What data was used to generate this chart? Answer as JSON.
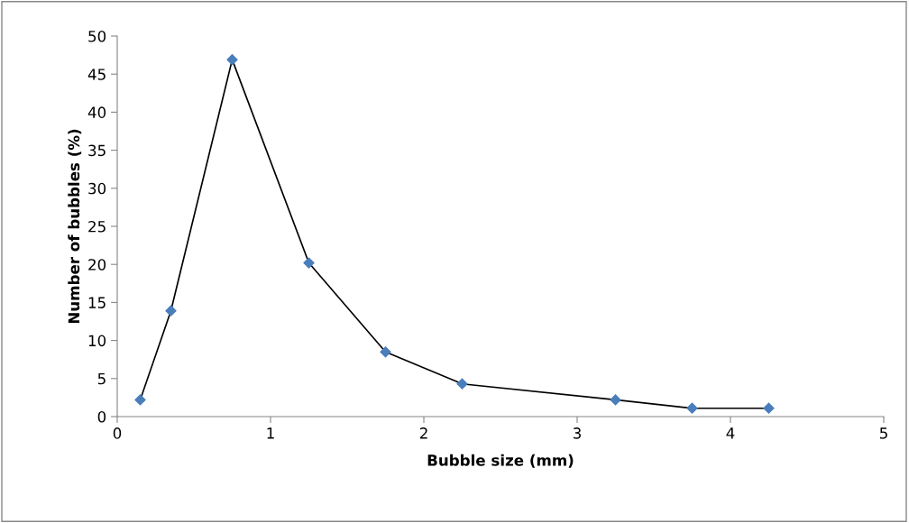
{
  "chart_data": {
    "type": "line",
    "xlabel": "Bubble size (mm)",
    "ylabel": "Number of bubbles (%)",
    "x": [
      0.15,
      0.35,
      0.75,
      1.25,
      1.75,
      2.25,
      3.25,
      3.75,
      4.25
    ],
    "series": [
      {
        "color": "#4a7ebb",
        "values": [
          2.2,
          13.9,
          46.9,
          20.2,
          8.5,
          4.3,
          2.2,
          1.1,
          1.1
        ]
      }
    ],
    "xlim": [
      0,
      5
    ],
    "xticks": [
      0,
      1,
      2,
      3,
      4,
      5
    ],
    "ylim": [
      0,
      50
    ],
    "yticks": [
      0,
      5,
      10,
      15,
      20,
      25,
      30,
      35,
      40,
      45,
      50
    ],
    "grid": false,
    "legend": false,
    "marker": "diamond",
    "line_style": "solid"
  }
}
